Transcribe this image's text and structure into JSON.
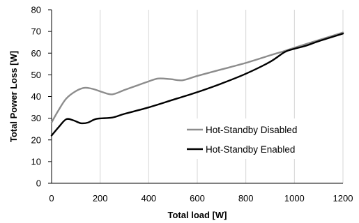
{
  "chart_data": {
    "type": "line",
    "xlabel": "Total load [W]",
    "ylabel": "Total Power Loss [W]",
    "xlim": [
      0,
      1200
    ],
    "ylim": [
      0,
      80
    ],
    "x_ticks": [
      "0",
      "200",
      "400",
      "600",
      "800",
      "1000",
      "1200"
    ],
    "y_ticks": [
      "0",
      "10",
      "20",
      "30",
      "40",
      "50",
      "60",
      "70",
      "80"
    ],
    "grid": "vertical",
    "legend_position": "lower-right",
    "series": [
      {
        "name": "Hot-Standby Disabled",
        "color": "#8c8c8c",
        "points": [
          [
            0,
            28
          ],
          [
            25,
            33
          ],
          [
            60,
            39
          ],
          [
            100,
            42.5
          ],
          [
            135,
            44
          ],
          [
            170,
            43.5
          ],
          [
            210,
            42
          ],
          [
            250,
            41
          ],
          [
            300,
            43
          ],
          [
            350,
            45
          ],
          [
            400,
            47
          ],
          [
            440,
            48.3
          ],
          [
            490,
            48
          ],
          [
            540,
            47.5
          ],
          [
            600,
            49.5
          ],
          [
            700,
            52.5
          ],
          [
            800,
            55.5
          ],
          [
            900,
            59
          ],
          [
            960,
            61
          ],
          [
            1000,
            62.5
          ],
          [
            1100,
            66
          ],
          [
            1200,
            69.5
          ]
        ]
      },
      {
        "name": "Hot-Standby Enabled",
        "color": "#000000",
        "points": [
          [
            0,
            22
          ],
          [
            30,
            26
          ],
          [
            60,
            29.5
          ],
          [
            90,
            29
          ],
          [
            120,
            27.7
          ],
          [
            150,
            28
          ],
          [
            185,
            29.7
          ],
          [
            250,
            30.3
          ],
          [
            300,
            32
          ],
          [
            400,
            35
          ],
          [
            500,
            38.5
          ],
          [
            600,
            42
          ],
          [
            700,
            46
          ],
          [
            800,
            50.5
          ],
          [
            900,
            56
          ],
          [
            960,
            60.5
          ],
          [
            1000,
            62
          ],
          [
            1050,
            63.5
          ],
          [
            1100,
            65.5
          ],
          [
            1200,
            69
          ]
        ]
      }
    ]
  }
}
